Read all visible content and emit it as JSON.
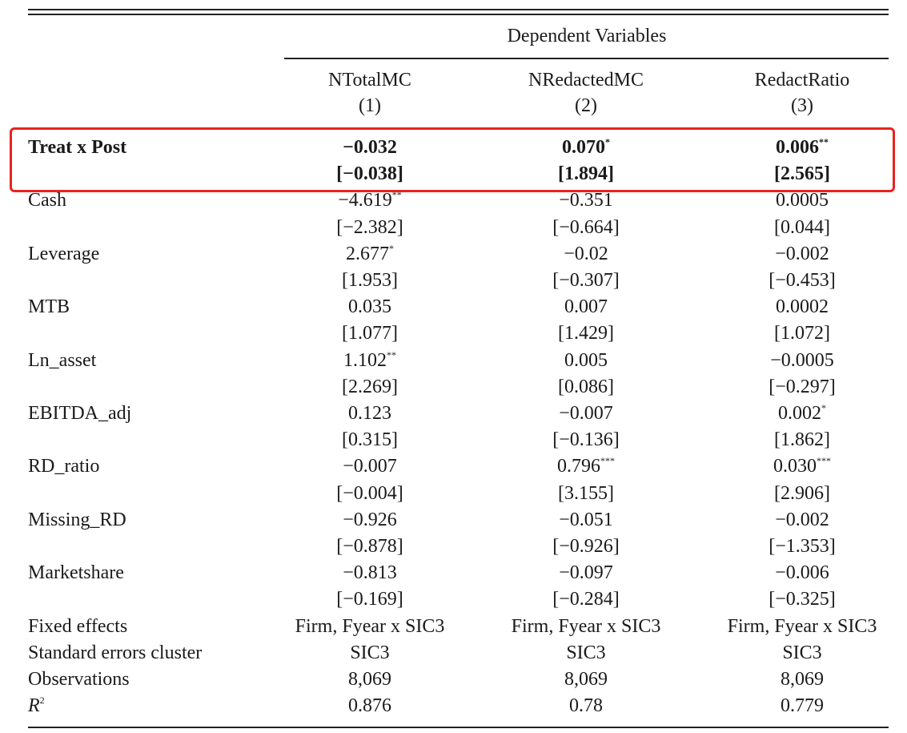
{
  "header": {
    "group": "Dependent Variables",
    "columns": [
      {
        "name": "NTotalMC",
        "number": "(1)"
      },
      {
        "name": "NRedactedMC",
        "number": "(2)"
      },
      {
        "name": "RedactRatio",
        "number": "(3)"
      }
    ]
  },
  "rows": [
    {
      "label": "Treat x Post",
      "bold": true,
      "highlight": true,
      "cells": [
        {
          "coef": "−0.032",
          "t": "[−0.038]"
        },
        {
          "coef": "0.070",
          "stars": "*",
          "t": "[1.894]"
        },
        {
          "coef": "0.006",
          "stars": "**",
          "t": "[2.565]"
        }
      ]
    },
    {
      "label": "Cash",
      "cells": [
        {
          "coef": "−4.619",
          "stars": "**",
          "t": "[−2.382]"
        },
        {
          "coef": "−0.351",
          "t": "[−0.664]"
        },
        {
          "coef": "0.0005",
          "t": "[0.044]"
        }
      ]
    },
    {
      "label": "Leverage",
      "cells": [
        {
          "coef": "2.677",
          "stars": "*",
          "t": "[1.953]"
        },
        {
          "coef": "−0.02",
          "t": "[−0.307]"
        },
        {
          "coef": "−0.002",
          "t": "[−0.453]"
        }
      ]
    },
    {
      "label": "MTB",
      "cells": [
        {
          "coef": "0.035",
          "t": "[1.077]"
        },
        {
          "coef": "0.007",
          "t": "[1.429]"
        },
        {
          "coef": "0.0002",
          "t": "[1.072]"
        }
      ]
    },
    {
      "label": "Ln_asset",
      "cells": [
        {
          "coef": "1.102",
          "stars": "**",
          "t": "[2.269]"
        },
        {
          "coef": "0.005",
          "t": "[0.086]"
        },
        {
          "coef": "−0.0005",
          "t": "[−0.297]"
        }
      ]
    },
    {
      "label": "EBITDA_adj",
      "cells": [
        {
          "coef": "0.123",
          "t": "[0.315]"
        },
        {
          "coef": "−0.007",
          "t": "[−0.136]"
        },
        {
          "coef": "0.002",
          "stars": "*",
          "t": "[1.862]"
        }
      ]
    },
    {
      "label": "RD_ratio",
      "cells": [
        {
          "coef": "−0.007",
          "t": "[−0.004]"
        },
        {
          "coef": "0.796",
          "stars": "***",
          "t": "[3.155]"
        },
        {
          "coef": "0.030",
          "stars": "***",
          "t": "[2.906]"
        }
      ]
    },
    {
      "label": "Missing_RD",
      "cells": [
        {
          "coef": "−0.926",
          "t": "[−0.878]"
        },
        {
          "coef": "−0.051",
          "t": "[−0.926]"
        },
        {
          "coef": "−0.002",
          "t": "[−1.353]"
        }
      ]
    },
    {
      "label": "Marketshare",
      "cells": [
        {
          "coef": "−0.813",
          "t": "[−0.169]"
        },
        {
          "coef": "−0.097",
          "t": "[−0.284]"
        },
        {
          "coef": "−0.006",
          "t": "[−0.325]"
        }
      ]
    }
  ],
  "footer": [
    {
      "label": "Fixed effects",
      "values": [
        "Firm, Fyear x SIC3",
        "Firm, Fyear x SIC3",
        "Firm, Fyear x SIC3"
      ]
    },
    {
      "label": "Standard errors cluster",
      "values": [
        "SIC3",
        "SIC3",
        "SIC3"
      ]
    },
    {
      "label": "Observations",
      "values": [
        "8,069",
        "8,069",
        "8,069"
      ]
    },
    {
      "label": "R",
      "label_sup": "2",
      "italic": true,
      "values": [
        "0.876",
        "0.78",
        "0.779"
      ]
    }
  ]
}
